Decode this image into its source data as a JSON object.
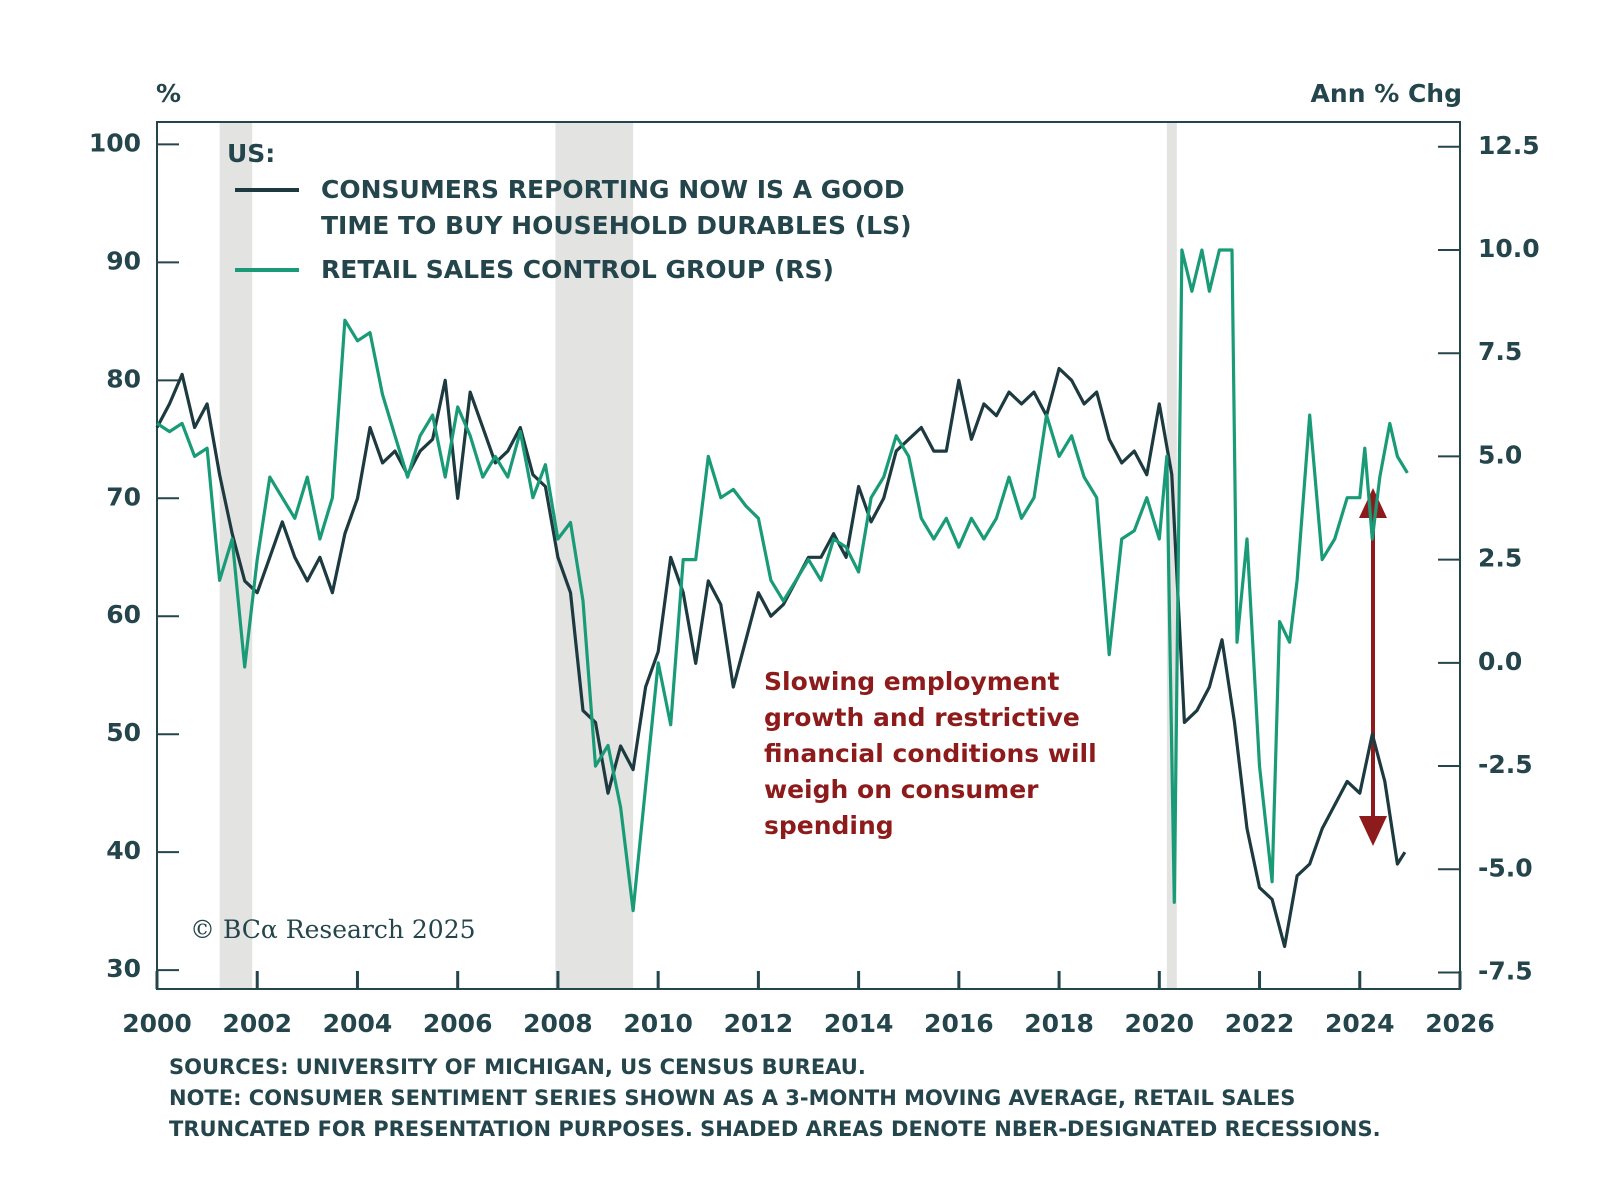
{
  "chart_data": {
    "type": "line",
    "ylabel": "%",
    "y2label": "Ann % Chg",
    "legend_title": "US:",
    "annotation": "Slowing employment growth and restrictive financial conditions will weigh on consumer spending",
    "credit": "© BCα Research 2025",
    "notes": [
      "SOURCES: UNIVERSITY OF MICHIGAN, US CENSUS BUREAU.",
      "NOTE: CONSUMER SENTIMENT SERIES SHOWN AS A 3-MONTH MOVING AVERAGE, RETAIL SALES TRUNCATED FOR PRESENTATION PURPOSES. SHADED AREAS DENOTE NBER-DESIGNATED RECESSIONS."
    ],
    "xlim": [
      2000,
      2026
    ],
    "xticks": [
      2000,
      2002,
      2004,
      2006,
      2008,
      2010,
      2012,
      2014,
      2016,
      2018,
      2020,
      2022,
      2024,
      2026
    ],
    "ylim": [
      28.4,
      101.9
    ],
    "yticks": [
      30,
      40,
      50,
      60,
      70,
      80,
      90,
      100
    ],
    "y2lim": [
      -7.9,
      13.1
    ],
    "y2ticks": [
      -7.5,
      {
        "value": -5,
        "label": "-5.0"
      },
      -2.5,
      {
        "value": 0,
        "label": "0.0"
      },
      2.5,
      {
        "value": 5,
        "label": "5.0"
      },
      7.5,
      {
        "value": 10,
        "label": "10.0"
      },
      12.5
    ],
    "recession_color": "#e3e3e1",
    "recessions": [
      [
        2001.25,
        2001.9
      ],
      [
        2007.95,
        2009.5
      ],
      [
        2020.15,
        2020.35
      ]
    ],
    "series": [
      {
        "name": "CONSUMERS REPORTING NOW IS A GOOD TIME TO BUY HOUSEHOLD DURABLES (LS)",
        "color": "#1d3a40",
        "axis": "y",
        "x": [
          2000,
          2000.25,
          2000.5,
          2000.75,
          2001,
          2001.25,
          2001.5,
          2001.75,
          2002,
          2002.25,
          2002.5,
          2002.75,
          2003,
          2003.25,
          2003.5,
          2003.75,
          2004,
          2004.25,
          2004.5,
          2004.75,
          2005,
          2005.25,
          2005.5,
          2005.75,
          2006,
          2006.25,
          2006.5,
          2006.75,
          2007,
          2007.25,
          2007.5,
          2007.75,
          2008,
          2008.25,
          2008.5,
          2008.75,
          2009,
          2009.25,
          2009.5,
          2009.75,
          2010,
          2010.25,
          2010.5,
          2010.75,
          2011,
          2011.25,
          2011.5,
          2011.75,
          2012,
          2012.25,
          2012.5,
          2012.75,
          2013,
          2013.25,
          2013.5,
          2013.75,
          2014,
          2014.25,
          2014.5,
          2014.75,
          2015,
          2015.25,
          2015.5,
          2015.75,
          2016,
          2016.25,
          2016.5,
          2016.75,
          2017,
          2017.25,
          2017.5,
          2017.75,
          2018,
          2018.25,
          2018.5,
          2018.75,
          2019,
          2019.25,
          2019.5,
          2019.75,
          2020,
          2020.25,
          2020.5,
          2020.75,
          2021,
          2021.25,
          2021.5,
          2021.75,
          2022,
          2022.25,
          2022.5,
          2022.75,
          2023,
          2023.25,
          2023.5,
          2023.75,
          2024,
          2024.25,
          2024.5,
          2024.75,
          2024.9
        ],
        "values": [
          76,
          78,
          80.5,
          76,
          78,
          72,
          67,
          63,
          62,
          65,
          68,
          65,
          63,
          65,
          62,
          67,
          70,
          76,
          73,
          74,
          72,
          74,
          75,
          80,
          70,
          79,
          76,
          73,
          74,
          76,
          72,
          71,
          65,
          62,
          52,
          51,
          45,
          49,
          47,
          54,
          57,
          65,
          62,
          56,
          63,
          61,
          54,
          58,
          62,
          60,
          61,
          63,
          65,
          65,
          67,
          65,
          71,
          68,
          70,
          74,
          75,
          76,
          74,
          74,
          80,
          75,
          78,
          77,
          79,
          78,
          79,
          77,
          81,
          80,
          78,
          79,
          75,
          73,
          74,
          72,
          78,
          72,
          51,
          52,
          54,
          58,
          51,
          42,
          37,
          36,
          32,
          38,
          39,
          42,
          44,
          46,
          45,
          50,
          46,
          39,
          40
        ]
      },
      {
        "name": "RETAIL SALES CONTROL GROUP (RS)",
        "color": "#1a9b77",
        "axis": "y2",
        "x": [
          2000,
          2000.25,
          2000.5,
          2000.75,
          2001,
          2001.25,
          2001.5,
          2001.75,
          2002,
          2002.25,
          2002.5,
          2002.75,
          2003,
          2003.25,
          2003.5,
          2003.75,
          2004,
          2004.25,
          2004.5,
          2004.75,
          2005,
          2005.25,
          2005.5,
          2005.75,
          2006,
          2006.25,
          2006.5,
          2006.75,
          2007,
          2007.25,
          2007.5,
          2007.75,
          2008,
          2008.25,
          2008.5,
          2008.75,
          2009,
          2009.25,
          2009.5,
          2009.75,
          2010,
          2010.25,
          2010.5,
          2010.75,
          2011,
          2011.25,
          2011.5,
          2011.75,
          2012,
          2012.25,
          2012.5,
          2012.75,
          2013,
          2013.25,
          2013.5,
          2013.75,
          2014,
          2014.25,
          2014.5,
          2014.75,
          2015,
          2015.25,
          2015.5,
          2015.75,
          2016,
          2016.25,
          2016.5,
          2016.75,
          2017,
          2017.25,
          2017.5,
          2017.75,
          2018,
          2018.25,
          2018.5,
          2018.75,
          2019,
          2019.25,
          2019.5,
          2019.75,
          2020,
          2020.15,
          2020.3,
          2020.45,
          2020.65,
          2020.85,
          2021,
          2021.2,
          2021.45,
          2021.55,
          2021.75,
          2022,
          2022.25,
          2022.4,
          2022.6,
          2022.75,
          2023,
          2023.25,
          2023.5,
          2023.75,
          2024,
          2024.1,
          2024.25,
          2024.4,
          2024.6,
          2024.75,
          2024.95
        ],
        "values": [
          5.8,
          5.6,
          5.8,
          5.0,
          5.2,
          2.0,
          3.0,
          -0.1,
          2.5,
          4.5,
          4.0,
          3.5,
          4.5,
          3.0,
          4.0,
          8.3,
          7.8,
          8.0,
          6.5,
          5.5,
          4.5,
          5.5,
          6.0,
          4.5,
          6.2,
          5.5,
          4.5,
          5.0,
          4.5,
          5.6,
          4.0,
          4.8,
          3.0,
          3.4,
          1.5,
          -2.5,
          -2.0,
          -3.5,
          -6.0,
          -3.0,
          0.0,
          -1.5,
          2.5,
          2.5,
          5.0,
          4.0,
          4.2,
          3.8,
          3.5,
          2.0,
          1.5,
          2.0,
          2.5,
          2.0,
          3.0,
          2.8,
          2.2,
          4.0,
          4.5,
          5.5,
          5.0,
          3.5,
          3.0,
          3.5,
          2.8,
          3.5,
          3.0,
          3.5,
          4.5,
          3.5,
          4.0,
          6.0,
          5.0,
          5.5,
          4.5,
          4.0,
          0.2,
          3.0,
          3.2,
          4.0,
          3.0,
          5.0,
          -5.8,
          10.0,
          9.0,
          10.0,
          9.0,
          10.0,
          10.0,
          0.5,
          3.0,
          -2.5,
          -5.3,
          1.0,
          0.5,
          2.0,
          6.0,
          2.5,
          3.0,
          4.0,
          4.0,
          5.2,
          3.0,
          4.5,
          5.8,
          5.0,
          4.6
        ]
      }
    ]
  }
}
